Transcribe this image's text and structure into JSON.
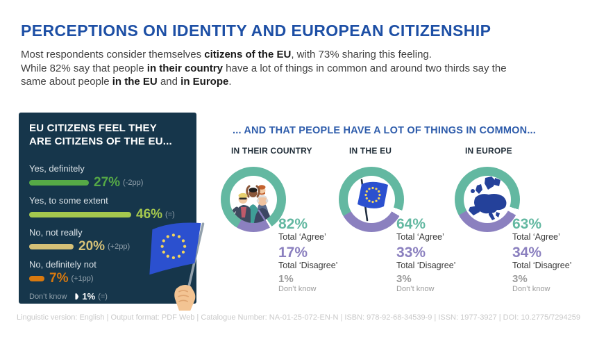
{
  "page": {
    "title": "PERCEPTIONS ON IDENTITY AND EUROPEAN CITIZENSHIP",
    "footer": "Linguistic version: English | Output format: PDF Web | Catalogue Number: NA-01-25-072-EN-N | ISBN: 978-92-68-34539-9 | ISSN: 1977-3927 | DOI: 10.2775/7294259"
  },
  "intro": {
    "l1a": "Most respondents consider themselves ",
    "l1b": "citizens of the EU",
    "l1c": ", with 73% sharing this feeling.",
    "l2a": "While 82% say that people ",
    "l2b": "in their country",
    "l2c": " have a lot of things in common and around two thirds say the",
    "l3a": "same about people ",
    "l3b": "in the EU",
    "l3c": " and ",
    "l3d": "in Europe",
    "l3e": "."
  },
  "citizenship": {
    "heading": "EU CITIZENS FEEL THEY ARE CITIZENS OF THE EU...",
    "panel_bg": "#16364b",
    "rows": [
      {
        "label": "Yes, definitely",
        "value": 27,
        "value_label": "27%",
        "change": "(-2pp)",
        "color": "#56a946"
      },
      {
        "label": "Yes, to some extent",
        "value": 46,
        "value_label": "46%",
        "change": "(=)",
        "color": "#a5c84e"
      },
      {
        "label": "No, not really",
        "value": 20,
        "value_label": "20%",
        "change": "(+2pp)",
        "color": "#d5c077"
      },
      {
        "label": "No, definitely not",
        "value": 7,
        "value_label": "7%",
        "change": "(+1pp)",
        "color": "#d8790f"
      }
    ],
    "dont_know": {
      "label": "Don’t know",
      "value": 1,
      "value_label": "1%",
      "change": "(=)"
    }
  },
  "commonality": {
    "heading": "... AND THAT PEOPLE HAVE A LOT OF THINGS IN COMMON...",
    "agree_color": "#63b8a1",
    "disagree_color": "#8b80bf",
    "dontknow_color": "#ffffff",
    "groups": [
      {
        "label": "IN THEIR COUNTRY",
        "icon": "people-group-icon",
        "agree": 82,
        "agree_label": "82%",
        "agree_text": "Total ‘Agree’",
        "disagree": 17,
        "disagree_label": "17%",
        "disagree_text": "Total ‘Disagree’",
        "dontknow": 1,
        "dontknow_label": "1%",
        "dontknow_text": "Don’t know"
      },
      {
        "label": "IN THE EU",
        "icon": "eu-flag-icon",
        "agree": 64,
        "agree_label": "64%",
        "agree_text": "Total ‘Agree’",
        "disagree": 33,
        "disagree_label": "33%",
        "disagree_text": "Total ‘Disagree’",
        "dontknow": 3,
        "dontknow_label": "3%",
        "dontknow_text": "Don’t know"
      },
      {
        "label": "IN EUROPE",
        "icon": "europe-map-icon",
        "agree": 63,
        "agree_label": "63%",
        "agree_text": "Total ‘Agree’",
        "disagree": 34,
        "disagree_label": "34%",
        "disagree_text": "Total ‘Disagree’",
        "dontknow": 3,
        "dontknow_label": "3%",
        "dontknow_text": "Don’t know"
      }
    ]
  },
  "chart_data": [
    {
      "type": "bar",
      "orientation": "horizontal",
      "title": "EU CITIZENS FEEL THEY ARE CITIZENS OF THE EU...",
      "categories": [
        "Yes, definitely",
        "Yes, to some extent",
        "No, not really",
        "No, definitely not",
        "Don’t know"
      ],
      "values": [
        27,
        46,
        20,
        7,
        1
      ],
      "changes": [
        "-2pp",
        "=",
        "+2pp",
        "+1pp",
        "="
      ],
      "unit": "%",
      "bar_colors": [
        "#56a946",
        "#a5c84e",
        "#d5c077",
        "#d8790f",
        "#ffffff"
      ]
    },
    {
      "type": "pie",
      "title": "... AND THAT PEOPLE HAVE A LOT OF THINGS IN COMMON...",
      "categories": [
        "Total ‘Agree’",
        "Total ‘Disagree’",
        "Don’t know"
      ],
      "series": [
        {
          "name": "IN THEIR COUNTRY",
          "values": [
            82,
            17,
            1
          ]
        },
        {
          "name": "IN THE EU",
          "values": [
            64,
            33,
            3
          ]
        },
        {
          "name": "IN EUROPE",
          "values": [
            63,
            34,
            3
          ]
        }
      ],
      "unit": "%",
      "slice_colors": [
        "#63b8a1",
        "#8b80bf",
        "#ffffff"
      ]
    }
  ]
}
